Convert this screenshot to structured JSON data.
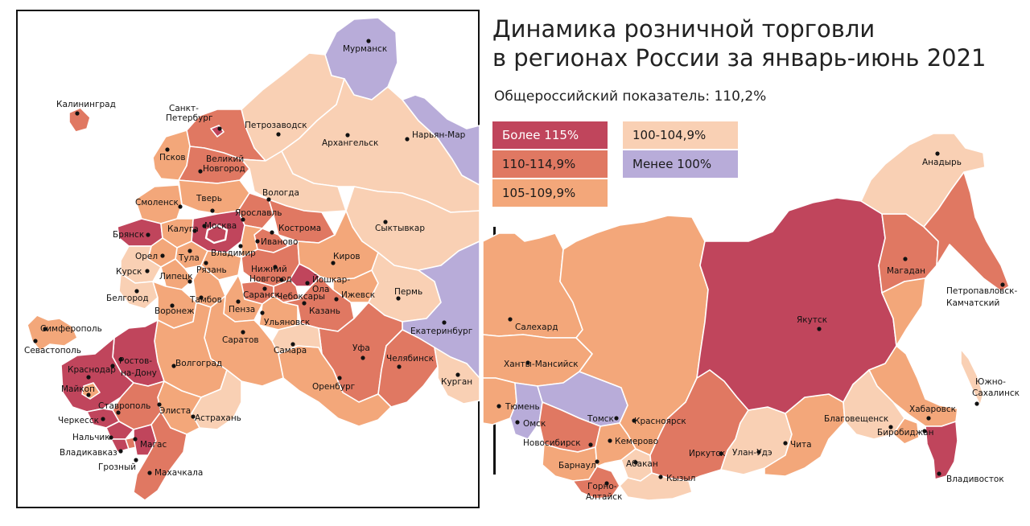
{
  "title_line1": "Динамика розничной торговли",
  "title_line2": "в регионах России за январь-июнь 2021",
  "national_indicator": "Общероссийский показатель: 110,2%",
  "colors": {
    "above115": "#c0455c",
    "r110_114": "#e07862",
    "r105_109": "#f3a77a",
    "r100_104": "#f9d0b4",
    "below100": "#b8acd9",
    "border": "#ffffff"
  },
  "legend": [
    {
      "label": "Более 115%",
      "color": "#c0455c",
      "text_color": "#ffffff"
    },
    {
      "label": "110-114,9%",
      "color": "#e07862",
      "text_color": "#1a1a1a"
    },
    {
      "label": "105-109,9%",
      "color": "#f3a77a",
      "text_color": "#1a1a1a"
    },
    {
      "label": "100-104,9%",
      "color": "#f9d0b4",
      "text_color": "#1a1a1a"
    },
    {
      "label": "Менее 100%",
      "color": "#b8acd9",
      "text_color": "#1a1a1a"
    }
  ],
  "cities": {
    "murmansk": "Мурманск",
    "kaliningrad": "Калининград",
    "spb_1": "Санкт-",
    "spb_2": "Петербург",
    "petrozavodsk": "Петрозаводск",
    "arkhangelsk": "Архангельск",
    "naryan_mar": "Нарьян-Мар",
    "pskov": "Псков",
    "vnovgorod_1": "Великий",
    "vnovgorod_2": "Новгород",
    "vologda": "Вологда",
    "smolensk": "Смоленск",
    "tver": "Тверь",
    "yaroslavl": "Ярославль",
    "syktyvkar": "Сыктывкар",
    "bryansk": "Брянск",
    "kaluga": "Калуга",
    "moskva": "Москва",
    "kostroma": "Кострома",
    "ivanovo": "Иваново",
    "vladimir": "Владимир",
    "orel": "Орел",
    "tula": "Тула",
    "ryazan": "Рязань",
    "kursk": "Курск",
    "kirov": "Киров",
    "nnovgorod_1": "Нижний",
    "nnovgorod_2": "Новгород",
    "yoshkar_1": "Йошкар-",
    "yoshkar_2": "Ола",
    "lipetsk": "Липецк",
    "saransk": "Саранск",
    "cheboksary": "Чебоксары",
    "perm": "Пермь",
    "belgorod": "Белгород",
    "tambov": "Тамбов",
    "izhevsk": "Ижевск",
    "voronezh": "Воронеж",
    "penza": "Пенза",
    "kazan": "Казань",
    "ulyanovsk": "Ульяновск",
    "ekaterinburg": "Екатеринбург",
    "simferopol": "Симферополь",
    "sevastopol": "Севастополь",
    "saratov": "Саратов",
    "samara": "Самара",
    "rostov_1": "Ростов-",
    "rostov_2": "на-Дону",
    "ufa": "Уфа",
    "chelyabinsk": "Челябинск",
    "krasnodar": "Краснодар",
    "volgograd": "Волгоград",
    "kurgan": "Курган",
    "maykop": "Майкоп",
    "orenburg": "Оренбург",
    "stavropol": "Ставрополь",
    "elista": "Элиста",
    "cherkessk": "Черкесск",
    "astrakhan": "Астрахань",
    "nalchik": "Нальчик",
    "magas": "Магас",
    "vladikavkaz": "Владикавказ",
    "groznyy": "Грозный",
    "makhachkala": "Махачкала",
    "anadyr": "Анадырь",
    "magadan": "Магадан",
    "petropavlovsk_1": "Петропавловск-",
    "petropavlovsk_2": "Камчатский",
    "yakutsk": "Якутск",
    "salekhard": "Салехард",
    "khanty": "Ханты-Мансийск",
    "yuzhno_1": "Южно-",
    "yuzhno_2": "Сахалинск",
    "tyumen": "Тюмень",
    "khabarovsk": "Хабаровск",
    "omsk": "Омск",
    "tomsk": "Томск",
    "krasnoyarsk": "Красноярск",
    "blagoveshchensk": "Благовещенск",
    "novosibirsk": "Новосибирск",
    "kemerovo": "Кемерово",
    "birobidzhan": "Биробиджан",
    "irkutsk": "Иркутск",
    "ulan_ude": "Улан-Удэ",
    "chita": "Чита",
    "barnaul": "Барнаул",
    "abakan": "Абакан",
    "kyzyl": "Кызыл",
    "vladivostok": "Владивосток",
    "gorno_1": "Горно-",
    "gorno_2": "Алтайск"
  }
}
